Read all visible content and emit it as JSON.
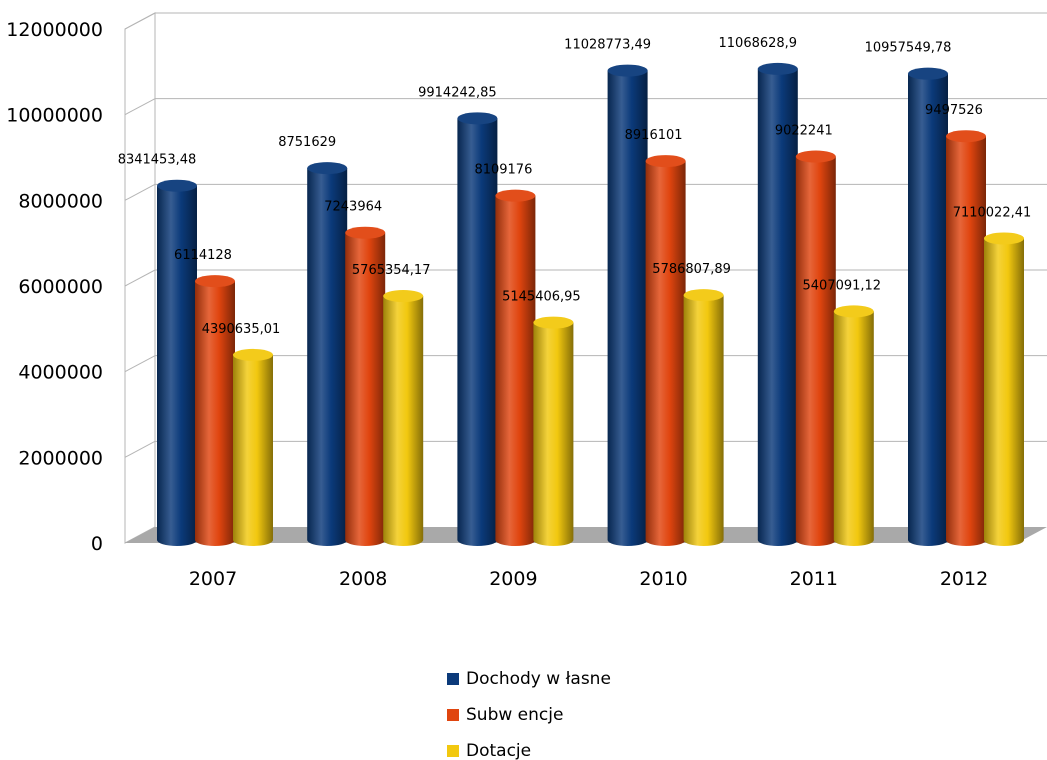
{
  "chart_data": {
    "type": "bar",
    "categories": [
      "2007",
      "2008",
      "2009",
      "2010",
      "2011",
      "2012"
    ],
    "series": [
      {
        "name": "Dochody w łasne",
        "color": "#0b3a7a",
        "values": [
          8341453.48,
          8751629,
          9914242.85,
          11028773.49,
          11068628.9,
          10957549.78
        ],
        "labels": [
          "8341453,48",
          "8751629",
          "9914242,85",
          "11028773,49",
          "11068628,9",
          "10957549,78"
        ]
      },
      {
        "name": "Subw encje",
        "color": "#e0450f",
        "values": [
          6114128,
          7243964,
          8109176,
          8916101,
          9022241,
          9497526
        ],
        "labels": [
          "6114128",
          "7243964",
          "8109176",
          "8916101",
          "9022241",
          "9497526"
        ]
      },
      {
        "name": "Dotacje",
        "color": "#f2c80f",
        "values": [
          4390635.01,
          5765354.17,
          5145406.95,
          5786807.89,
          5407091.12,
          7110022.41
        ],
        "labels": [
          "4390635,01",
          "5765354,17",
          "5145406,95",
          "5786807,89",
          "5407091,12",
          "7110022,41"
        ]
      }
    ],
    "yticks": [
      "0",
      "2000000",
      "4000000",
      "6000000",
      "8000000",
      "10000000",
      "12000000"
    ],
    "ylim": [
      0,
      12000000
    ],
    "grid": true,
    "legend_position": "bottom",
    "style": "3d-cylinder"
  }
}
